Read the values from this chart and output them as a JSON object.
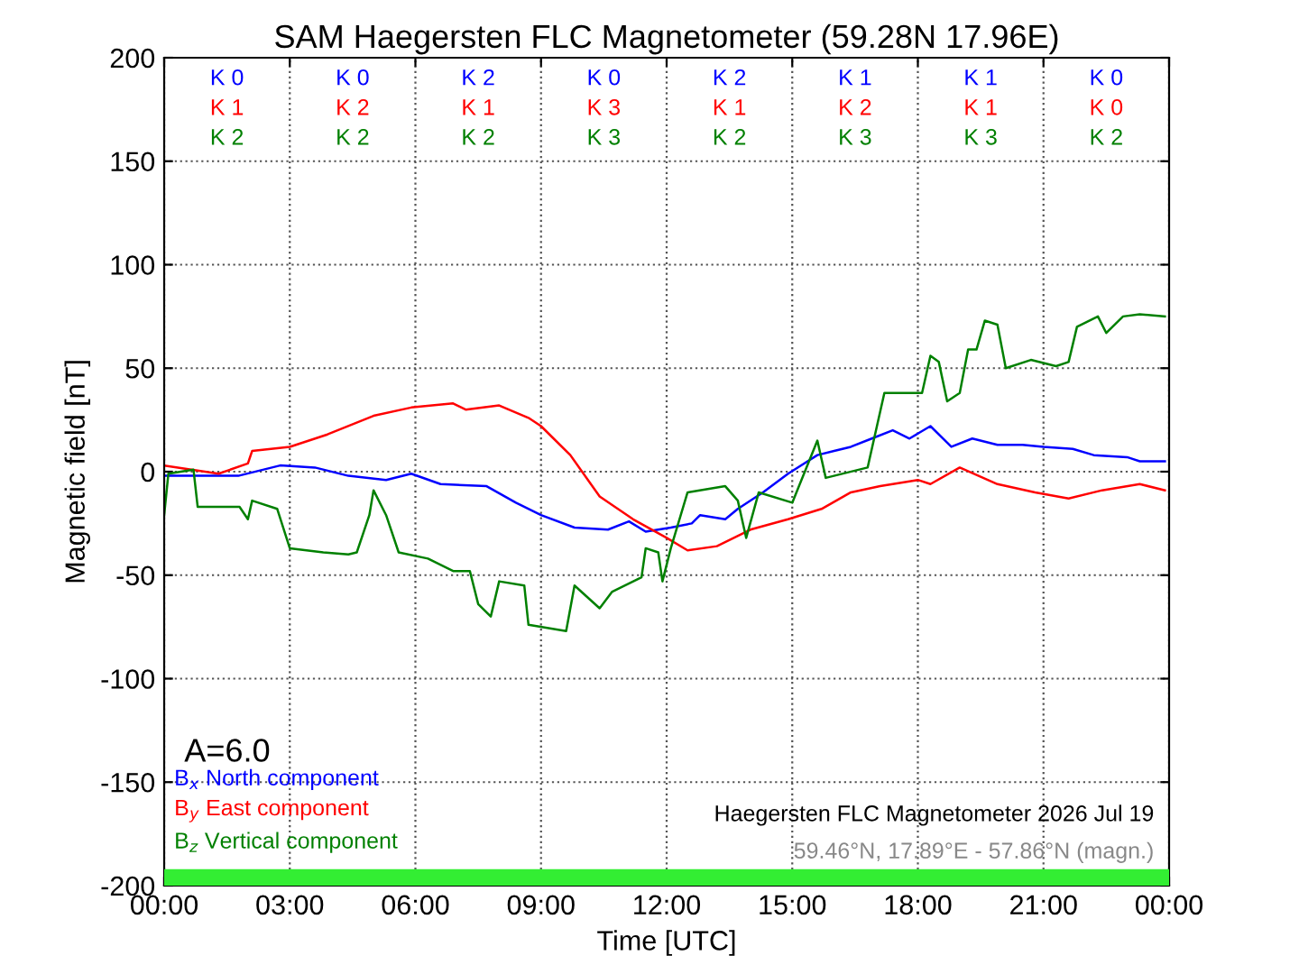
{
  "chart_data": {
    "type": "line",
    "title": "SAM Haegersten FLC Magnetometer (59.28N 17.96E)",
    "xlabel": "Time [UTC]",
    "ylabel": "Magnetic field [nT]",
    "xlim": [
      0,
      24
    ],
    "xticks": [
      {
        "value": 0,
        "label": "00:00"
      },
      {
        "value": 3,
        "label": "03:00"
      },
      {
        "value": 6,
        "label": "06:00"
      },
      {
        "value": 9,
        "label": "09:00"
      },
      {
        "value": 12,
        "label": "12:00"
      },
      {
        "value": 15,
        "label": "15:00"
      },
      {
        "value": 18,
        "label": "18:00"
      },
      {
        "value": 21,
        "label": "21:00"
      },
      {
        "value": 24,
        "label": "00:00"
      }
    ],
    "ylim": [
      -200,
      200
    ],
    "yticks": [
      -200,
      -150,
      -100,
      -50,
      0,
      50,
      100,
      150,
      200
    ],
    "grid": true,
    "series": [
      {
        "name": "B$_{x}$ North component",
        "color": "#0000ff",
        "x": [
          0,
          1.77,
          2.77,
          3.6,
          4.4,
          5.3,
          5.9,
          6.6,
          7.7,
          8.4,
          9.0,
          9.8,
          10.6,
          11.1,
          11.5,
          12.1,
          12.6,
          12.8,
          13.4,
          13.7,
          14.3,
          14.9,
          15.6,
          16.0,
          16.4,
          16.9,
          17.4,
          17.8,
          18.3,
          18.8,
          19.3,
          19.9,
          20.5,
          21.0,
          21.7,
          22.2,
          23.0,
          23.3,
          23.9
        ],
        "values": [
          -2,
          -2,
          3,
          2,
          -2,
          -4,
          -1,
          -6,
          -7,
          -15,
          -21,
          -27,
          -28,
          -24,
          -29,
          -27,
          -25,
          -21,
          -23,
          -18,
          -10,
          -1,
          8,
          10,
          12,
          16,
          20,
          16,
          22,
          12,
          16,
          13,
          13,
          12,
          11,
          8,
          7,
          5,
          5
        ]
      },
      {
        "name": "B$_{y}$ East component",
        "color": "#ff0000",
        "x": [
          0,
          1.3,
          2.0,
          2.1,
          3,
          3.9,
          5.0,
          5.9,
          6.9,
          7.2,
          8.0,
          8.7,
          9.0,
          9.7,
          10.4,
          11.2,
          12.0,
          12.5,
          13.2,
          14.0,
          14.9,
          15.7,
          16.4,
          17.1,
          18.0,
          18.3,
          19.0,
          19.9,
          20.8,
          21.6,
          22.4,
          23.3,
          23.9
        ],
        "values": [
          3,
          -1,
          4,
          10,
          12,
          18,
          27,
          31,
          33,
          30,
          32,
          26,
          22,
          8,
          -12,
          -23,
          -32,
          -38,
          -36,
          -28,
          -23,
          -18,
          -10,
          -7,
          -4,
          -6,
          2,
          -6,
          -10,
          -13,
          -9,
          -6,
          -9
        ]
      },
      {
        "name": "B$_{z}$ Vertical component",
        "color": "#008000",
        "x": [
          0,
          0.1,
          0.7,
          0.8,
          1.8,
          2.0,
          2.1,
          2.7,
          3.0,
          3.8,
          4.4,
          4.6,
          4.9,
          5.0,
          5.3,
          5.6,
          6.3,
          6.9,
          7.3,
          7.5,
          7.8,
          8.0,
          8.6,
          8.7,
          9.6,
          9.8,
          10.4,
          10.7,
          11.4,
          11.5,
          11.8,
          11.9,
          12.1,
          12.5,
          13.4,
          13.7,
          13.9,
          14.2,
          15.0,
          15.6,
          15.8,
          16.8,
          17.2,
          18.1,
          18.3,
          18.5,
          18.7,
          19.0,
          19.2,
          19.4,
          19.6,
          19.9,
          20.1,
          20.7,
          21.3,
          21.6,
          21.8,
          22.3,
          22.5,
          22.9,
          23.3,
          23.9
        ],
        "values": [
          -21,
          -1,
          1,
          -17,
          -17,
          -23,
          -14,
          -18,
          -37,
          -39,
          -40,
          -39,
          -21,
          -9,
          -21,
          -39,
          -42,
          -48,
          -48,
          -64,
          -70,
          -53,
          -55,
          -74,
          -77,
          -55,
          -66,
          -58,
          -51,
          -37,
          -39,
          -53,
          -37,
          -10,
          -7,
          -14,
          -32,
          -10,
          -15,
          15,
          -3,
          2,
          38,
          38,
          56,
          53,
          34,
          38,
          59,
          59,
          73,
          71,
          50,
          54,
          51,
          53,
          70,
          75,
          67,
          75,
          76,
          75
        ]
      }
    ],
    "bands": [
      {
        "axis": "y",
        "from": -200,
        "to": -192,
        "color": "#33ee33"
      }
    ],
    "annotations": [
      "A=6.0",
      "Haegersten FLC Magnetometer 2026 Jul 19",
      "59.46°N, 17.89°E - 57.86°N (magn.)",
      "K 0",
      "K 0",
      "K 2",
      "K 0",
      "K 2",
      "K 1",
      "K 1",
      "K 0",
      "K 1",
      "K 2",
      "K 1",
      "K 3",
      "K 1",
      "K 2",
      "K 1",
      "K 0",
      "K 2",
      "K 2",
      "K 2",
      "K 3",
      "K 2",
      "K 3",
      "K 3",
      "K 2"
    ]
  }
}
